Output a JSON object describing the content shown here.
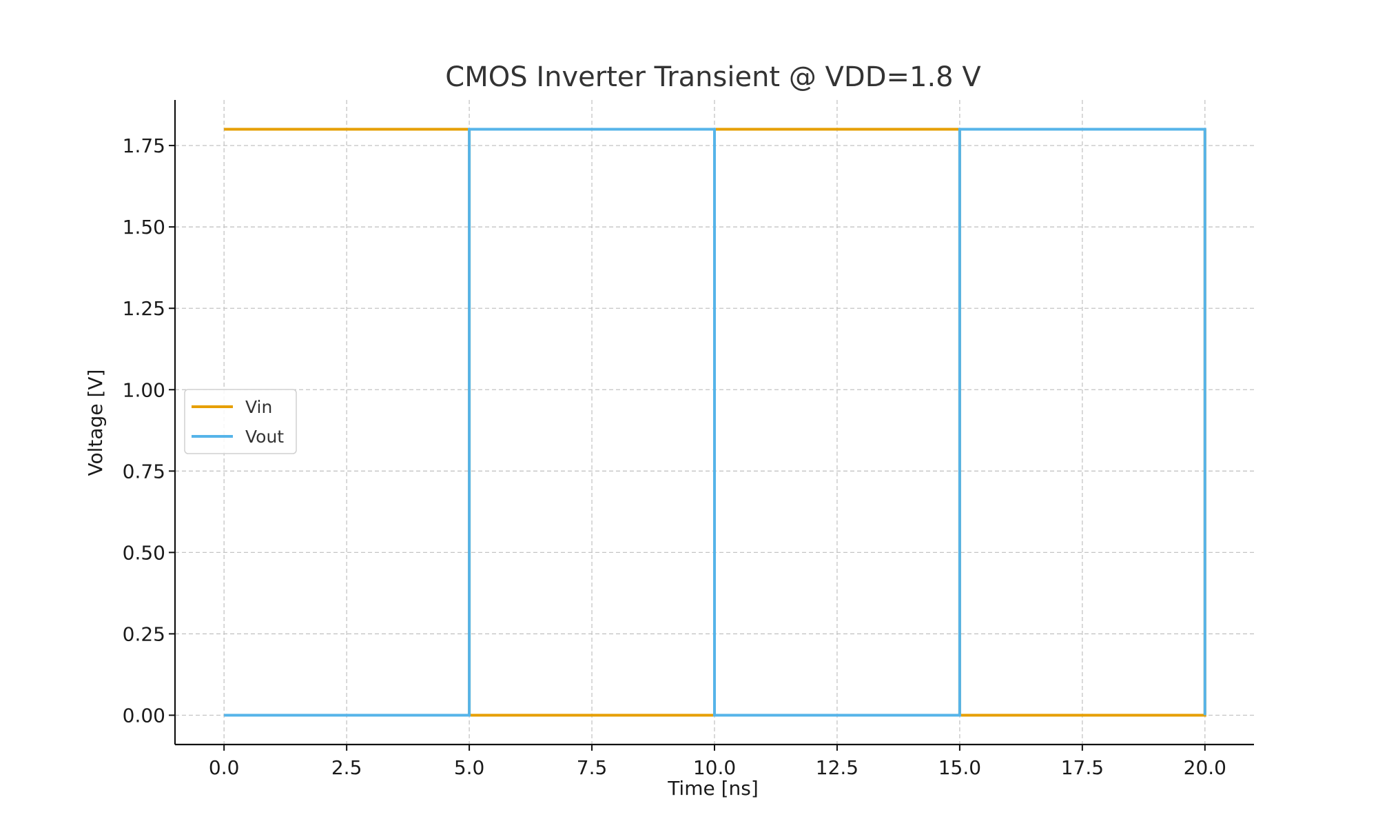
{
  "chart_data": {
    "type": "line",
    "title": "CMOS Inverter Transient @ VDD=1.8 V",
    "xlabel": "Time [ns]",
    "ylabel": "Voltage [V]",
    "xlim": [
      -1.0,
      21.0
    ],
    "ylim": [
      -0.09,
      1.89
    ],
    "xticks": [
      0.0,
      2.5,
      5.0,
      7.5,
      10.0,
      12.5,
      15.0,
      17.5,
      20.0
    ],
    "xtick_labels": [
      "0.0",
      "2.5",
      "5.0",
      "7.5",
      "10.0",
      "12.5",
      "15.0",
      "17.5",
      "20.0"
    ],
    "yticks": [
      0.0,
      0.25,
      0.5,
      0.75,
      1.0,
      1.25,
      1.5,
      1.75
    ],
    "ytick_labels": [
      "0.00",
      "0.25",
      "0.50",
      "0.75",
      "1.00",
      "1.25",
      "1.50",
      "1.75"
    ],
    "grid": true,
    "legend_position": "center-left",
    "series": [
      {
        "name": "Vin",
        "color": "#E69F00",
        "x": [
          0,
          5,
          5,
          10,
          10,
          15,
          15,
          20,
          20
        ],
        "y": [
          1.8,
          1.8,
          0.0,
          0.0,
          1.8,
          1.8,
          0.0,
          0.0,
          1.8
        ]
      },
      {
        "name": "Vout",
        "color": "#56B4E9",
        "x": [
          0,
          5,
          5,
          10,
          10,
          15,
          15,
          20,
          20
        ],
        "y": [
          0.0,
          0.0,
          1.8,
          1.8,
          0.0,
          0.0,
          1.8,
          1.8,
          0.0
        ]
      }
    ]
  }
}
